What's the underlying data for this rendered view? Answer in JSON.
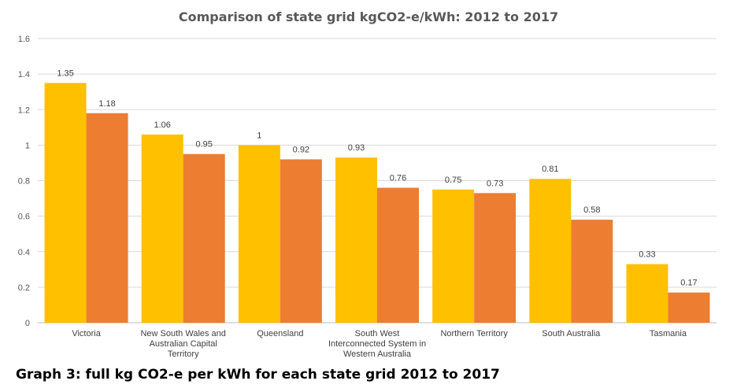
{
  "chart_data": {
    "type": "bar",
    "title": "Comparison of state grid kgCO2-e/kWh: 2012 to 2017",
    "categories": [
      [
        "Victoria"
      ],
      [
        "New South Wales and",
        "Australian Capital",
        "Territory"
      ],
      [
        "Queensland"
      ],
      [
        "South West",
        "Interconnected System in",
        "Western Australia"
      ],
      [
        "Northern Territory"
      ],
      [
        "South Australia"
      ],
      [
        "Tasmania"
      ]
    ],
    "series": [
      {
        "values": [
          1.35,
          1.06,
          1,
          0.93,
          0.75,
          0.81,
          0.33
        ],
        "labels": [
          "1.35",
          "1.06",
          "1",
          "0.93",
          "0.75",
          "0.81",
          "0.33"
        ],
        "color": "#FFC000"
      },
      {
        "values": [
          1.18,
          0.95,
          0.92,
          0.76,
          0.73,
          0.58,
          0.17
        ],
        "labels": [
          "1.18",
          "0.95",
          "0.92",
          "0.76",
          "0.73",
          "0.58",
          "0.17"
        ],
        "color": "#ED7D31"
      }
    ],
    "ylim": [
      0,
      1.6
    ],
    "yticks": [
      "0",
      "0.2",
      "0.4",
      "0.6",
      "0.8",
      "1",
      "1.2",
      "1.4",
      "1.6"
    ],
    "grid": true,
    "legend": "none"
  },
  "caption": "Graph 3: full kg CO2-e per kWh for each state grid 2012 to 2017"
}
